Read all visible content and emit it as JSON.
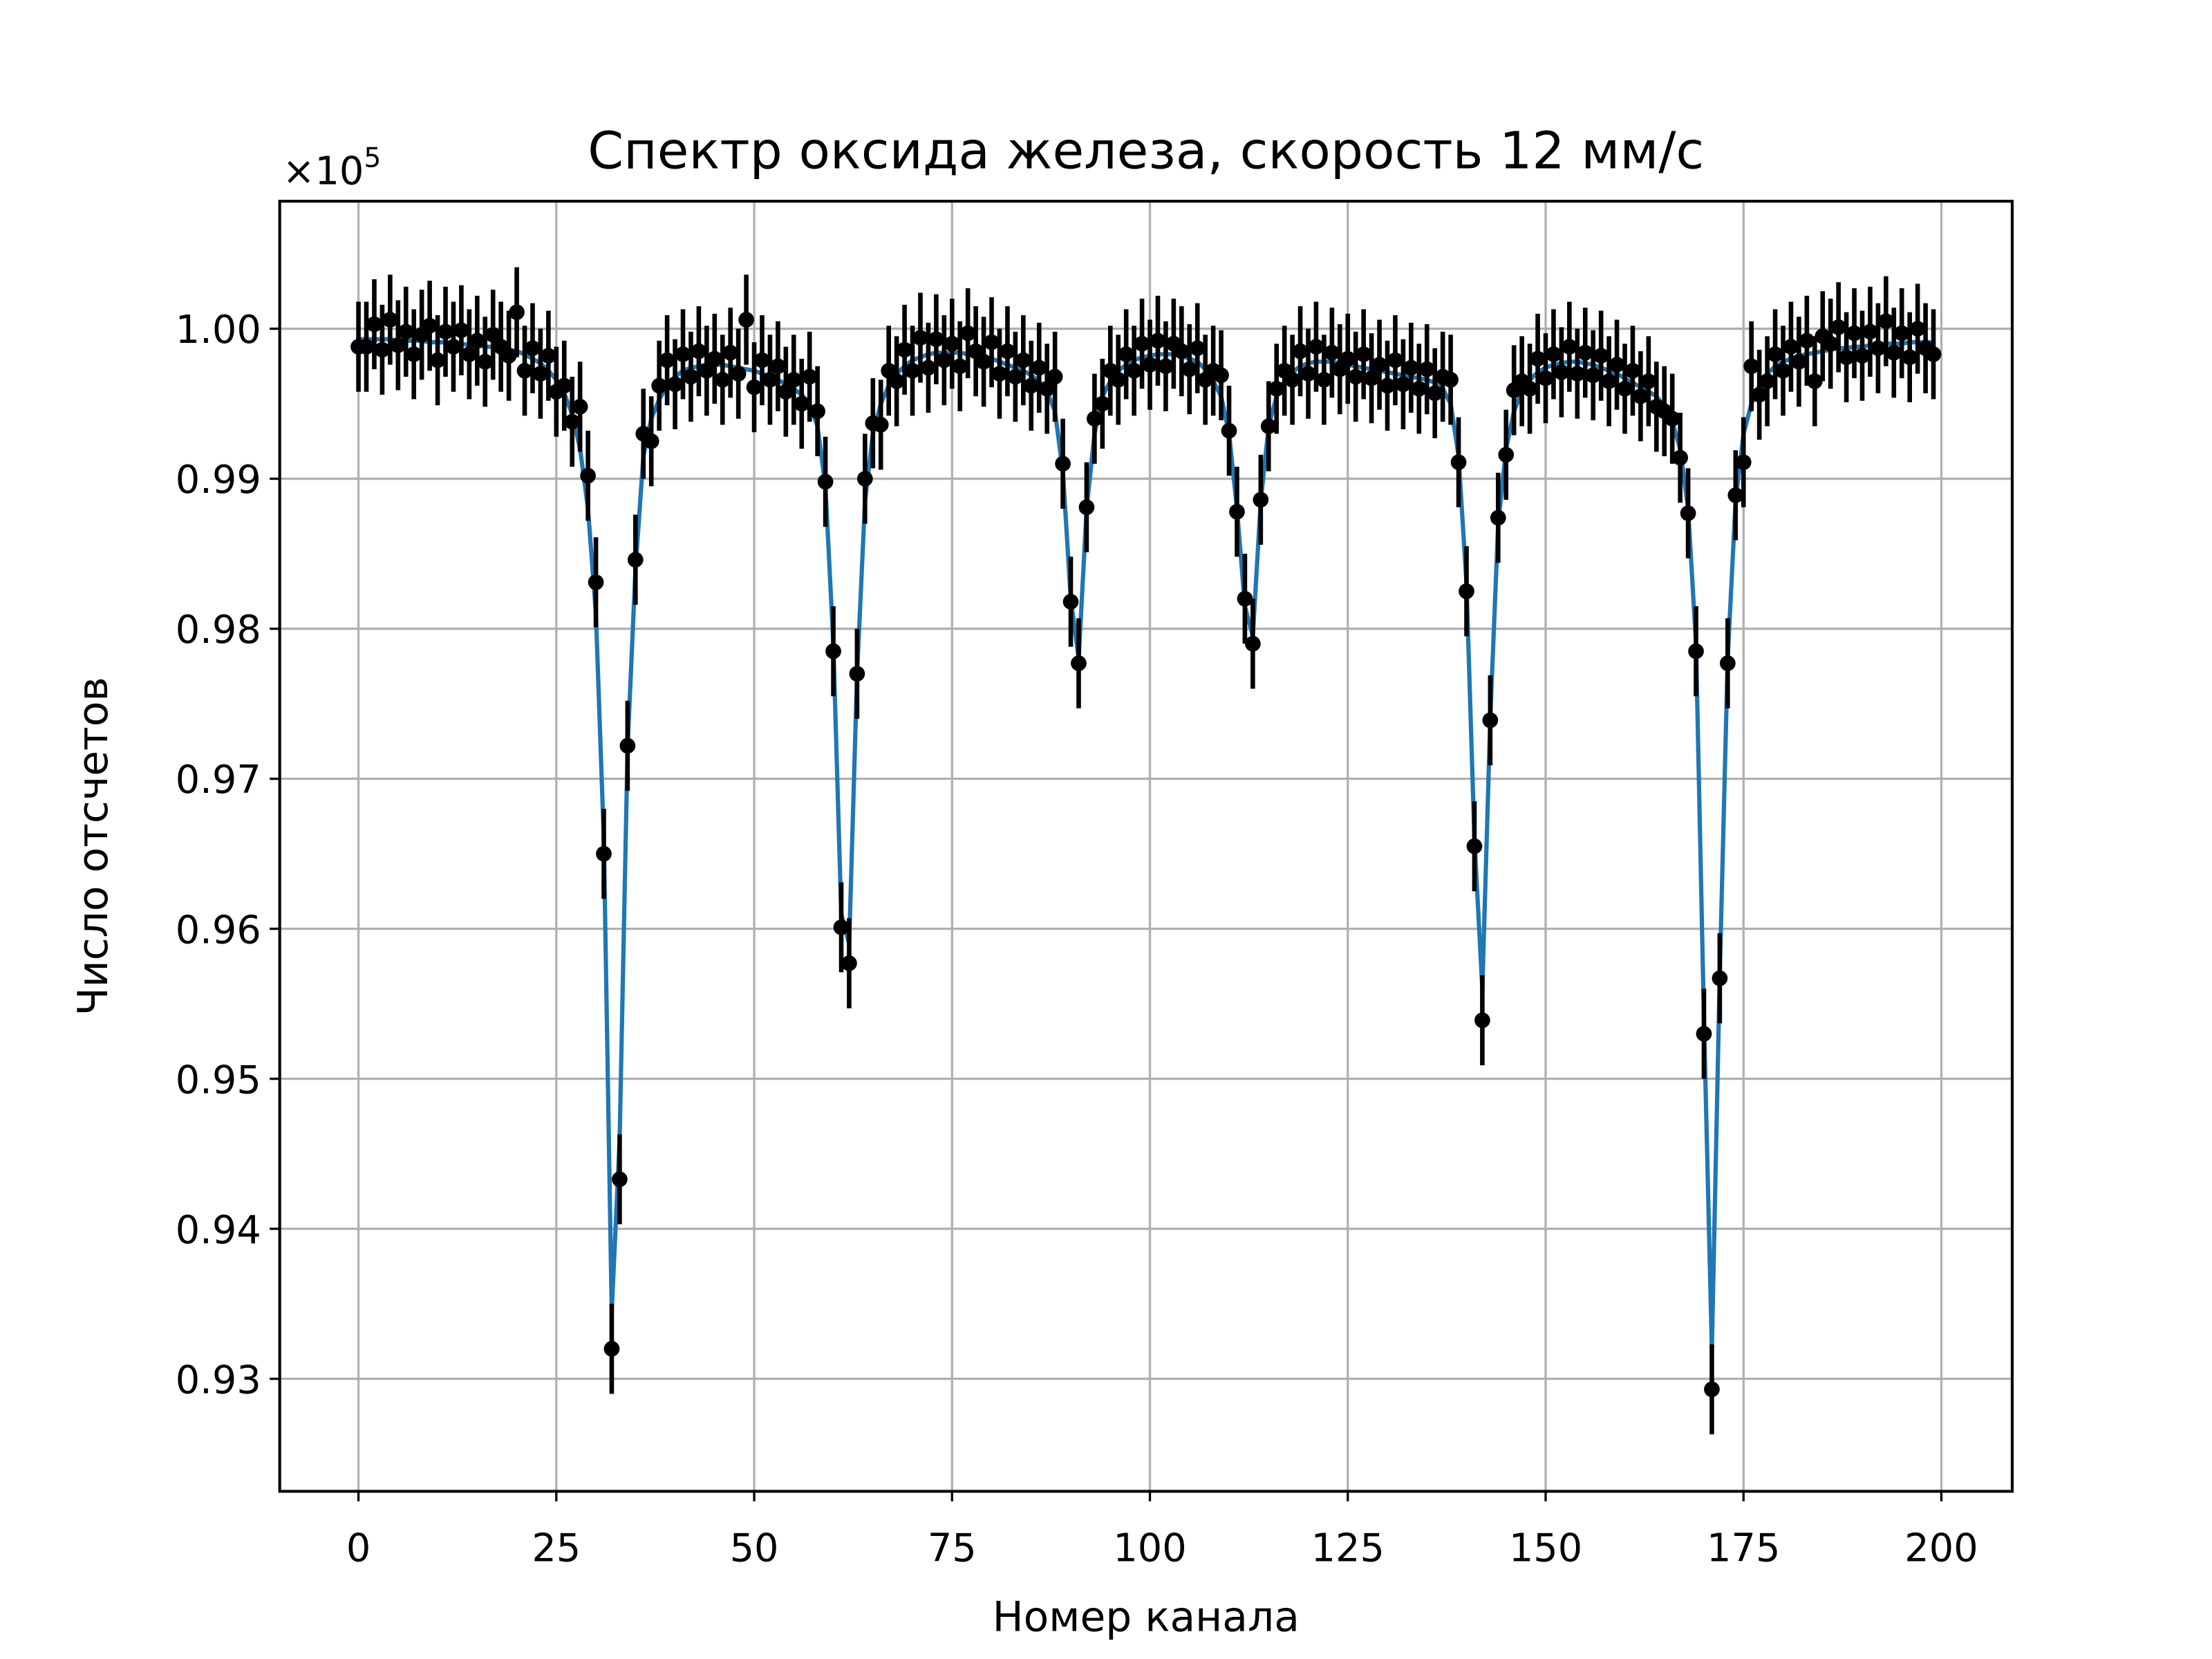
{
  "chart_data": {
    "type": "errorbar",
    "title": "Спектр оксида железа, скорость 12 мм/с",
    "xlabel": "Номер канала",
    "ylabel": "Число отсчетов",
    "y_offset_text": "×10",
    "y_offset_exponent": "5",
    "xlim": [
      -9.95,
      208.95
    ],
    "ylim": [
      0.9225,
      1.0085
    ],
    "xticks": [
      0,
      25,
      50,
      75,
      100,
      125,
      150,
      175,
      200
    ],
    "yticks": [
      0.93,
      0.94,
      0.95,
      0.96,
      0.97,
      0.98,
      0.99,
      {
        "value": 1,
        "label": "1.00"
      }
    ],
    "grid": true,
    "yerr": 0.003,
    "x": [
      0,
      1,
      2,
      3,
      4,
      5,
      6,
      7,
      8,
      9,
      10,
      11,
      12,
      13,
      14,
      15,
      16,
      17,
      18,
      19,
      20,
      21,
      22,
      23,
      24,
      25,
      26,
      27,
      28,
      29,
      30,
      31,
      32,
      33,
      34,
      35,
      36,
      37,
      38,
      39,
      40,
      41,
      42,
      43,
      44,
      45,
      46,
      47,
      48,
      49,
      50,
      51,
      52,
      53,
      54,
      55,
      56,
      57,
      58,
      59,
      60,
      61,
      62,
      63,
      64,
      65,
      66,
      67,
      68,
      69,
      70,
      71,
      72,
      73,
      74,
      75,
      76,
      77,
      78,
      79,
      80,
      81,
      82,
      83,
      84,
      85,
      86,
      87,
      88,
      89,
      90,
      91,
      92,
      93,
      94,
      95,
      96,
      97,
      98,
      99,
      100,
      101,
      102,
      103,
      104,
      105,
      106,
      107,
      108,
      109,
      110,
      111,
      112,
      113,
      114,
      115,
      116,
      117,
      118,
      119,
      120,
      121,
      122,
      123,
      124,
      125,
      126,
      127,
      128,
      129,
      130,
      131,
      132,
      133,
      134,
      135,
      136,
      137,
      138,
      139,
      140,
      141,
      142,
      143,
      144,
      145,
      146,
      147,
      148,
      149,
      150,
      151,
      152,
      153,
      154,
      155,
      156,
      157,
      158,
      159,
      160,
      161,
      162,
      163,
      164,
      165,
      166,
      167,
      168,
      169,
      170,
      171,
      172,
      173,
      174,
      175,
      176,
      177,
      178,
      179,
      180,
      181,
      182,
      183,
      184,
      185,
      186,
      187,
      188,
      189,
      190,
      191,
      192,
      193,
      194,
      195,
      196,
      197,
      198,
      199
    ],
    "series": [
      {
        "style": "line",
        "color": "#1f77b4",
        "values": [
          0.9993,
          0.9993,
          0.9993,
          0.9993,
          0.9993,
          0.9992,
          0.9992,
          0.9992,
          0.9992,
          0.9991,
          0.9991,
          0.9991,
          0.999,
          0.999,
          0.9989,
          0.9989,
          0.9988,
          0.9988,
          0.9987,
          0.9986,
          0.9985,
          0.9983,
          0.998,
          0.9977,
          0.9972,
          0.9966,
          0.9957,
          0.9943,
          0.992,
          0.988,
          0.981,
          0.966,
          0.9345,
          0.946,
          0.972,
          0.984,
          0.9915,
          0.994,
          0.9953,
          0.9962,
          0.9968,
          0.9972,
          0.9974,
          0.9975,
          0.9976,
          0.9976,
          0.9976,
          0.9975,
          0.9974,
          0.9973,
          0.9972,
          0.997,
          0.9968,
          0.9966,
          0.9963,
          0.996,
          0.9956,
          0.995,
          0.9935,
          0.9895,
          0.979,
          0.961,
          0.959,
          0.977,
          0.9885,
          0.993,
          0.995,
          0.9962,
          0.997,
          0.9975,
          0.9979,
          0.9981,
          0.9983,
          0.9984,
          0.9984,
          0.9984,
          0.9984,
          0.9983,
          0.9982,
          0.9981,
          0.998,
          0.9978,
          0.9976,
          0.9974,
          0.9972,
          0.9969,
          0.9965,
          0.9958,
          0.9945,
          0.9905,
          0.982,
          0.978,
          0.988,
          0.993,
          0.9955,
          0.9965,
          0.9972,
          0.9976,
          0.9979,
          0.9981,
          0.9982,
          0.9983,
          0.9983,
          0.9983,
          0.9982,
          0.998,
          0.9978,
          0.9973,
          0.9965,
          0.9955,
          0.993,
          0.988,
          0.9815,
          0.9795,
          0.9885,
          0.9935,
          0.9955,
          0.9965,
          0.9971,
          0.9975,
          0.9977,
          0.9978,
          0.9978,
          0.9978,
          0.9977,
          0.9976,
          0.9975,
          0.9974,
          0.9973,
          0.9972,
          0.9971,
          0.997,
          0.9969,
          0.9968,
          0.9967,
          0.9966,
          0.9964,
          0.996,
          0.995,
          0.9915,
          0.983,
          0.966,
          0.956,
          0.974,
          0.987,
          0.992,
          0.9945,
          0.9958,
          0.9966,
          0.9971,
          0.9974,
          0.9976,
          0.9977,
          0.9978,
          0.9978,
          0.9977,
          0.9976,
          0.9974,
          0.9972,
          0.997,
          0.9967,
          0.9964,
          0.9961,
          0.9958,
          0.9955,
          0.9948,
          0.9938,
          0.992,
          0.988,
          0.979,
          0.954,
          0.932,
          0.957,
          0.978,
          0.9885,
          0.993,
          0.995,
          0.9962,
          0.997,
          0.9975,
          0.9978,
          0.998,
          0.9982,
          0.9983,
          0.9984,
          0.9985,
          0.9986,
          0.9987,
          0.9987,
          0.9988,
          0.9988,
          0.9989,
          0.9989,
          0.999,
          0.999,
          0.999,
          0.9991,
          0.9991,
          0.9991,
          0.9991
        ]
      },
      {
        "style": "errorbar",
        "color": "#000000",
        "values": [
          0.9988,
          0.9988,
          1.0003,
          0.9986,
          1.0006,
          0.9989,
          0.9998,
          0.9983,
          0.9996,
          1.0002,
          0.9979,
          0.9998,
          0.9988,
          0.9999,
          0.9983,
          0.9992,
          0.9978,
          0.9996,
          0.9988,
          0.9982,
          1.0011,
          0.9972,
          0.9987,
          0.997,
          0.9982,
          0.9958,
          0.9962,
          0.9938,
          0.9948,
          0.9902,
          0.9831,
          0.965,
          0.932,
          0.9433,
          0.9722,
          0.9846,
          0.993,
          0.9925,
          0.9962,
          0.9979,
          0.9963,
          0.9983,
          0.9968,
          0.9985,
          0.9972,
          0.998,
          0.9966,
          0.9984,
          0.997,
          1.0006,
          0.9961,
          0.9979,
          0.9966,
          0.9975,
          0.9958,
          0.9966,
          0.995,
          0.9968,
          0.9945,
          0.9898,
          0.9785,
          0.9601,
          0.9577,
          0.977,
          0.99,
          0.9937,
          0.9936,
          0.9972,
          0.9965,
          0.9986,
          0.9972,
          0.9994,
          0.9974,
          0.9993,
          0.9979,
          0.999,
          0.9975,
          0.9997,
          0.9985,
          0.9978,
          0.9991,
          0.997,
          0.9985,
          0.9968,
          0.9979,
          0.9962,
          0.9974,
          0.996,
          0.9968,
          0.991,
          0.9818,
          0.9777,
          0.9881,
          0.994,
          0.995,
          0.9972,
          0.9966,
          0.9983,
          0.9972,
          0.999,
          0.9976,
          0.9992,
          0.9975,
          0.999,
          0.9985,
          0.9973,
          0.9987,
          0.9966,
          0.9972,
          0.9969,
          0.9932,
          0.9878,
          0.982,
          0.979,
          0.9886,
          0.9935,
          0.996,
          0.9972,
          0.9966,
          0.9985,
          0.997,
          0.9988,
          0.9966,
          0.9984,
          0.9973,
          0.998,
          0.9968,
          0.9983,
          0.9967,
          0.9976,
          0.9962,
          0.9979,
          0.9963,
          0.9974,
          0.996,
          0.9973,
          0.9957,
          0.9968,
          0.9966,
          0.9911,
          0.9825,
          0.9655,
          0.9539,
          0.9739,
          0.9874,
          0.9916,
          0.9959,
          0.9965,
          0.996,
          0.998,
          0.9967,
          0.9983,
          0.9971,
          0.9988,
          0.997,
          0.9984,
          0.9969,
          0.9982,
          0.9965,
          0.9976,
          0.996,
          0.9972,
          0.9955,
          0.9965,
          0.9948,
          0.9945,
          0.994,
          0.9914,
          0.9877,
          0.9785,
          0.953,
          0.9293,
          0.9567,
          0.9777,
          0.9889,
          0.9911,
          0.9975,
          0.9956,
          0.9965,
          0.9983,
          0.9972,
          0.9988,
          0.9978,
          0.9992,
          0.9965,
          0.9995,
          0.999,
          1.0001,
          0.9981,
          0.9997,
          0.9982,
          0.9998,
          0.9987,
          1.0005,
          0.9984,
          0.9997,
          0.9981,
          1.0,
          0.9987,
          0.9983
        ]
      }
    ]
  }
}
